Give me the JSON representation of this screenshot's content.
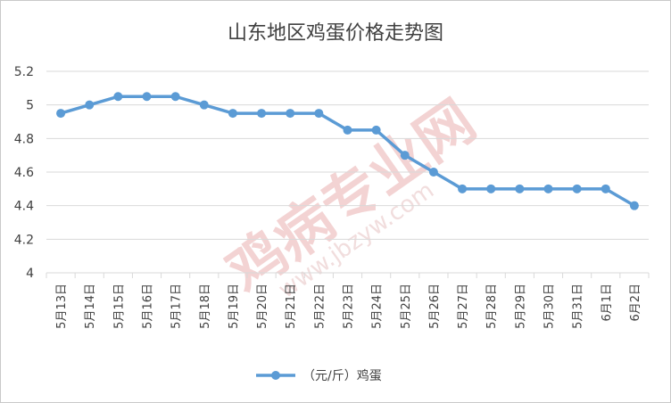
{
  "chart_data": {
    "type": "line",
    "title": "山东地区鸡蛋价格走势图",
    "categories": [
      "5月13日",
      "5月14日",
      "5月15日",
      "5月16日",
      "5月17日",
      "5月18日",
      "5月19日",
      "5月20日",
      "5月21日",
      "5月22日",
      "5月23日",
      "5月24日",
      "5月25日",
      "5月26日",
      "5月27日",
      "5月28日",
      "5月29日",
      "5月30日",
      "5月31日",
      "6月1日",
      "6月2日"
    ],
    "series": [
      {
        "name": "（元/斤）鸡蛋",
        "values": [
          4.95,
          5.0,
          5.05,
          5.05,
          5.05,
          5.0,
          4.95,
          4.95,
          4.95,
          4.95,
          4.85,
          4.85,
          4.7,
          4.6,
          4.5,
          4.5,
          4.5,
          4.5,
          4.5,
          4.5,
          4.4
        ]
      }
    ],
    "y_ticks": [
      "4",
      "4.2",
      "4.4",
      "4.6",
      "4.8",
      "5",
      "5.2"
    ],
    "ylim": [
      4,
      5.2
    ],
    "grid": true,
    "legend": "bottom",
    "colors": {
      "line": "#5b9bd5",
      "grid": "#d9d9d9",
      "text": "#404040"
    }
  },
  "watermark": {
    "text": "鸡病专业网",
    "url": "www.jbzyw.com",
    "color": "#e8b5b5"
  }
}
